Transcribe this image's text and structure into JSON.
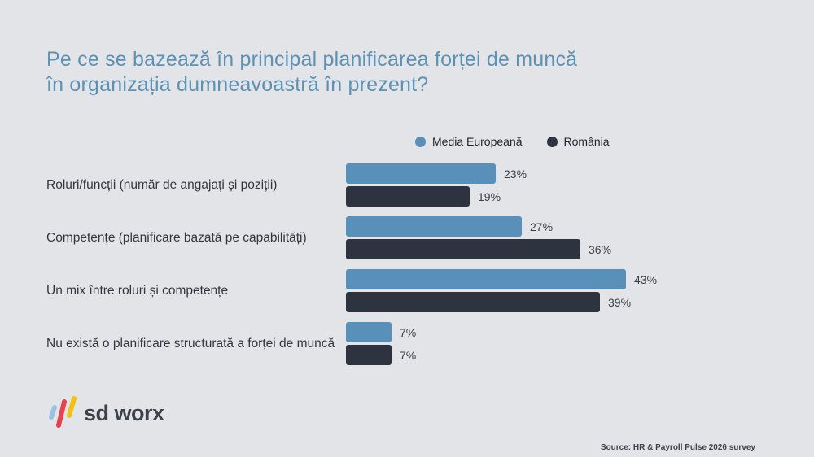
{
  "title": {
    "line1": "Pe ce se bazează în principal planificarea forței de muncă",
    "line2": "în organizația dumneavoastră în prezent?"
  },
  "legend": {
    "items": [
      {
        "label": "Media Europeană",
        "color": "#5890ba"
      },
      {
        "label": "România",
        "color": "#2e3340"
      }
    ]
  },
  "chart_data": {
    "type": "bar",
    "orientation": "horizontal",
    "title": "Pe ce se bazează în principal planificarea forței de muncă în organizația dumneavoastră în prezent?",
    "categories": [
      "Roluri/funcții (număr de angajați și poziții)",
      "Competențe (planificare bazată pe capabilități)",
      "Un mix între roluri și competențe",
      "Nu există o planificare structurată a forței de muncă"
    ],
    "series": [
      {
        "name": "Media Europeană",
        "color": "#5890ba",
        "values": [
          23,
          27,
          43,
          7
        ]
      },
      {
        "name": "România",
        "color": "#2e3340",
        "values": [
          19,
          36,
          39,
          7
        ]
      }
    ],
    "value_suffix": "%",
    "xlim": [
      0,
      50
    ],
    "grid": false,
    "legend_position": "top",
    "data_labels": true
  },
  "logo": {
    "brand": "sd worx",
    "mark_colors": {
      "blue": "#9dc2e0",
      "red": "#e8424f",
      "yellow": "#f2c118"
    }
  },
  "footer": {
    "source": "Source: HR & Payroll Pulse 2026 survey"
  },
  "colors": {
    "background": "#e3e4e8",
    "title": "#5b92b5",
    "category_label": "#33373c",
    "value_label": "#3a3f47"
  }
}
